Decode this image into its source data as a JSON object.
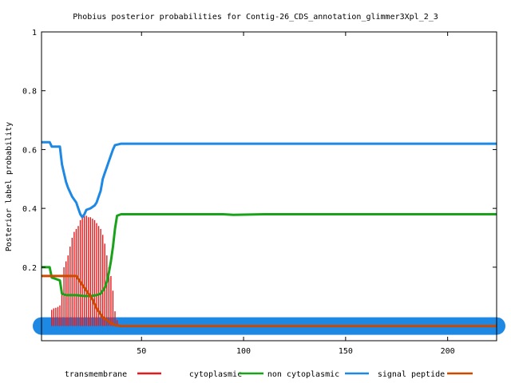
{
  "chart_data": {
    "type": "line",
    "title": "Phobius posterior probabilities for Contig-26_CDS_annotation_glimmer3Xpl_2_3",
    "xlabel": "",
    "ylabel": "Posterior label probability",
    "xlim": [
      1,
      224
    ],
    "ylim": [
      -0.05,
      1.0
    ],
    "x_ticks": [
      50,
      100,
      150,
      200
    ],
    "y_ticks": [
      0.2,
      0.4,
      0.6,
      0.8,
      1
    ],
    "y_tick_labels": [
      "0.2",
      "0.4",
      "0.6",
      "0.8",
      "1"
    ],
    "grid": false,
    "legend_position": "bottom",
    "legend": [
      {
        "name": "transmembrane",
        "color": "#e41a1c"
      },
      {
        "name": "cytoplasmic",
        "color": "#e41a1c"
      },
      {
        "name": "non cytoplasmic",
        "color": "#1aa31a"
      },
      {
        "name": "signal peptide",
        "color": "#1e88e5"
      },
      {
        "name": "",
        "color": "#cc4a00"
      }
    ],
    "series": [
      {
        "role": "transmembrane",
        "style": "impulses",
        "color": "#e41a1c",
        "x": [
          6,
          7,
          8,
          9,
          10,
          11,
          12,
          13,
          14,
          15,
          16,
          17,
          18,
          19,
          20,
          21,
          22,
          23,
          24,
          25,
          26,
          27,
          28,
          29,
          30,
          31,
          32,
          33,
          34,
          35,
          36,
          37,
          38
        ],
        "values": [
          0.055,
          0.06,
          0.062,
          0.065,
          0.07,
          0.12,
          0.2,
          0.22,
          0.24,
          0.27,
          0.3,
          0.32,
          0.33,
          0.34,
          0.36,
          0.37,
          0.375,
          0.375,
          0.37,
          0.37,
          0.365,
          0.36,
          0.35,
          0.34,
          0.33,
          0.31,
          0.28,
          0.24,
          0.2,
          0.17,
          0.12,
          0.05,
          0.02
        ]
      },
      {
        "role": "cytoplasmic",
        "style": "line",
        "color": "#1aa31a",
        "x": [
          1,
          5,
          6,
          8,
          10,
          11,
          13,
          15,
          18,
          22,
          25,
          28,
          30,
          32,
          33,
          34,
          35,
          36,
          37,
          38,
          40,
          60,
          90,
          95,
          110,
          150,
          200,
          224
        ],
        "values": [
          0.2,
          0.2,
          0.165,
          0.16,
          0.155,
          0.11,
          0.105,
          0.105,
          0.105,
          0.102,
          0.102,
          0.105,
          0.11,
          0.13,
          0.15,
          0.18,
          0.22,
          0.27,
          0.33,
          0.375,
          0.38,
          0.38,
          0.38,
          0.378,
          0.38,
          0.38,
          0.38,
          0.38
        ]
      },
      {
        "role": "signal peptide",
        "style": "line",
        "color": "#1e88e5",
        "x": [
          1,
          5,
          6,
          10,
          11,
          12,
          13,
          14,
          16,
          18,
          19,
          20,
          21,
          22,
          23,
          25,
          27,
          28,
          30,
          31,
          32,
          33,
          34,
          35,
          36,
          37,
          40,
          100,
          224
        ],
        "values": [
          0.625,
          0.625,
          0.61,
          0.61,
          0.55,
          0.52,
          0.49,
          0.47,
          0.44,
          0.42,
          0.4,
          0.38,
          0.37,
          0.38,
          0.395,
          0.4,
          0.41,
          0.42,
          0.46,
          0.5,
          0.52,
          0.54,
          0.56,
          0.58,
          0.6,
          0.615,
          0.62,
          0.62,
          0.62
        ]
      },
      {
        "role": "non cytoplasmic",
        "style": "line",
        "color": "#cc4a00",
        "x": [
          1,
          10,
          18,
          20,
          23,
          26,
          28,
          30,
          31,
          33,
          35,
          37,
          40,
          224
        ],
        "values": [
          0.17,
          0.17,
          0.17,
          0.15,
          0.12,
          0.09,
          0.06,
          0.04,
          0.03,
          0.02,
          0.01,
          0.003,
          0.0,
          0.0
        ]
      },
      {
        "role": "baseline band",
        "style": "band",
        "color": "#1e88e5",
        "x": [
          1,
          224
        ],
        "values": [
          0.0,
          0.0
        ]
      }
    ]
  }
}
